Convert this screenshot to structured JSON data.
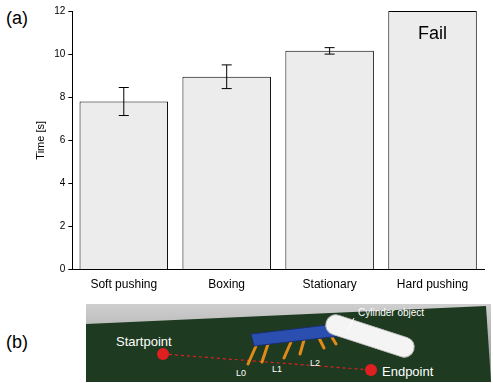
{
  "chart_data": {
    "type": "bar",
    "y_label": "Time [s]",
    "categories": [
      "Soft pushing",
      "Boxing",
      "Stationary",
      "Hard pushing"
    ],
    "values": [
      7.8,
      8.95,
      10.15,
      12
    ],
    "errors": [
      0.65,
      0.55,
      0.15,
      null
    ],
    "color": "#ececec",
    "ylim": [
      0,
      12
    ],
    "yticks": [
      0,
      2,
      4,
      6,
      8,
      10,
      12
    ],
    "grid": false,
    "annotations": [
      {
        "category": "Hard pushing",
        "text": "Fail"
      }
    ]
  },
  "panel_labels": [
    "(a)",
    "(b)"
  ],
  "scene": {
    "start_label": "Startpoint",
    "end_label": "Endpoint",
    "object_label": "Cylinder object",
    "leg_labels": [
      "L0",
      "L1",
      "L2"
    ]
  }
}
